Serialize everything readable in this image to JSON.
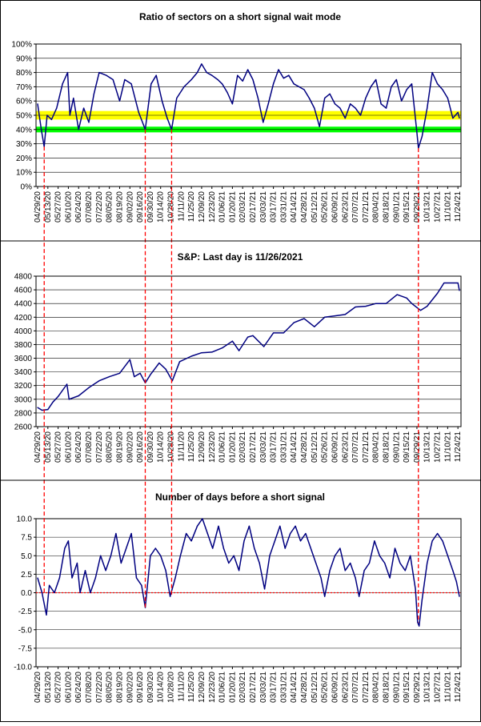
{
  "colors": {
    "series": "#000080",
    "band_yellow": "#ffff00",
    "band_green": "#00ff00",
    "signal_lines": "#ff0000",
    "zero_line": "#ff0000",
    "gridline": "#000000",
    "frame": "#000000"
  },
  "x_tick_labels": [
    "04/29/20",
    "05/13/20",
    "05/27/20",
    "06/10/20",
    "06/24/20",
    "07/08/20",
    "07/22/20",
    "08/05/20",
    "08/19/20",
    "09/02/20",
    "09/16/20",
    "09/30/20",
    "10/14/20",
    "10/28/20",
    "11/11/20",
    "11/25/20",
    "12/09/20",
    "12/23/20",
    "01/06/21",
    "01/20/21",
    "02/03/21",
    "02/17/21",
    "03/03/21",
    "03/17/21",
    "03/31/21",
    "04/14/21",
    "04/28/21",
    "05/12/21",
    "05/26/21",
    "06/09/21",
    "06/23/21",
    "07/07/21",
    "07/21/21",
    "08/04/21",
    "08/18/21",
    "09/01/21",
    "09/15/21",
    "09/29/21",
    "10/13/21",
    "10/27/21",
    "11/10/21",
    "11/24/21"
  ],
  "signal_dates": [
    "05/08/20",
    "09/23/20",
    "10/29/20",
    "10/01/21"
  ],
  "chart_data": [
    {
      "type": "line",
      "title": "Ratio of sectors on a short signal wait mode",
      "ylim": [
        0,
        100
      ],
      "y_ticks": [
        0,
        10,
        20,
        30,
        40,
        50,
        60,
        70,
        80,
        90,
        100
      ],
      "y_tick_labels": [
        "0%",
        "10%",
        "20%",
        "30%",
        "40%",
        "50%",
        "60%",
        "70%",
        "80%",
        "90%",
        "100%"
      ],
      "bands": [
        {
          "color": "yellow",
          "from": 47,
          "to": 53
        },
        {
          "color": "green",
          "from": 38,
          "to": 42
        }
      ],
      "points": [
        [
          "04/29/20",
          58
        ],
        [
          "05/04/20",
          40
        ],
        [
          "05/08/20",
          28
        ],
        [
          "05/12/20",
          50
        ],
        [
          "05/18/20",
          47
        ],
        [
          "05/25/20",
          55
        ],
        [
          "06/02/20",
          72
        ],
        [
          "06/09/20",
          80
        ],
        [
          "06/12/20",
          50
        ],
        [
          "06/17/20",
          62
        ],
        [
          "06/24/20",
          40
        ],
        [
          "07/01/20",
          55
        ],
        [
          "07/08/20",
          45
        ],
        [
          "07/15/20",
          65
        ],
        [
          "07/22/20",
          80
        ],
        [
          "08/01/20",
          78
        ],
        [
          "08/10/20",
          75
        ],
        [
          "08/19/20",
          60
        ],
        [
          "08/26/20",
          75
        ],
        [
          "09/04/20",
          72
        ],
        [
          "09/14/20",
          52
        ],
        [
          "09/23/20",
          40
        ],
        [
          "10/01/20",
          72
        ],
        [
          "10/08/20",
          78
        ],
        [
          "10/16/20",
          60
        ],
        [
          "10/23/20",
          48
        ],
        [
          "10/29/20",
          40
        ],
        [
          "11/05/20",
          62
        ],
        [
          "11/15/20",
          70
        ],
        [
          "11/25/20",
          75
        ],
        [
          "12/03/20",
          80
        ],
        [
          "12/09/20",
          86
        ],
        [
          "12/16/20",
          80
        ],
        [
          "12/23/20",
          78
        ],
        [
          "12/31/20",
          75
        ],
        [
          "01/06/21",
          72
        ],
        [
          "01/13/21",
          66
        ],
        [
          "01/20/21",
          58
        ],
        [
          "01/27/21",
          78
        ],
        [
          "02/03/21",
          74
        ],
        [
          "02/10/21",
          82
        ],
        [
          "02/17/21",
          75
        ],
        [
          "02/24/21",
          62
        ],
        [
          "03/03/21",
          45
        ],
        [
          "03/10/21",
          58
        ],
        [
          "03/17/21",
          72
        ],
        [
          "03/24/21",
          82
        ],
        [
          "03/31/21",
          76
        ],
        [
          "04/07/21",
          78
        ],
        [
          "04/14/21",
          72
        ],
        [
          "04/21/21",
          70
        ],
        [
          "04/28/21",
          68
        ],
        [
          "05/05/21",
          62
        ],
        [
          "05/12/21",
          55
        ],
        [
          "05/19/21",
          42
        ],
        [
          "05/26/21",
          62
        ],
        [
          "06/02/21",
          65
        ],
        [
          "06/09/21",
          58
        ],
        [
          "06/16/21",
          55
        ],
        [
          "06/23/21",
          48
        ],
        [
          "06/30/21",
          58
        ],
        [
          "07/07/21",
          55
        ],
        [
          "07/14/21",
          50
        ],
        [
          "07/21/21",
          62
        ],
        [
          "07/28/21",
          70
        ],
        [
          "08/04/21",
          75
        ],
        [
          "08/11/21",
          58
        ],
        [
          "08/18/21",
          55
        ],
        [
          "08/25/21",
          70
        ],
        [
          "09/01/21",
          75
        ],
        [
          "09/08/21",
          60
        ],
        [
          "09/15/21",
          68
        ],
        [
          "09/22/21",
          72
        ],
        [
          "09/29/21",
          38
        ],
        [
          "10/01/21",
          27
        ],
        [
          "10/06/21",
          35
        ],
        [
          "10/13/21",
          55
        ],
        [
          "10/20/21",
          80
        ],
        [
          "10/27/21",
          72
        ],
        [
          "11/03/21",
          68
        ],
        [
          "11/10/21",
          62
        ],
        [
          "11/17/21",
          48
        ],
        [
          "11/24/21",
          52
        ],
        [
          "11/26/21",
          48
        ]
      ]
    },
    {
      "type": "line",
      "title": "S&P: Last day is 11/26/2021",
      "ylim": [
        2600,
        4800
      ],
      "y_ticks": [
        2600,
        2800,
        3000,
        3200,
        3400,
        3600,
        3800,
        4000,
        4200,
        4400,
        4600,
        4800
      ],
      "y_tick_labels": [
        "2600",
        "2800",
        "3000",
        "3200",
        "3400",
        "3600",
        "3800",
        "4000",
        "4200",
        "4400",
        "4600",
        "4800"
      ],
      "points": [
        [
          "04/29/20",
          2880
        ],
        [
          "05/05/20",
          2840
        ],
        [
          "05/13/20",
          2850
        ],
        [
          "05/20/20",
          2960
        ],
        [
          "05/27/20",
          3040
        ],
        [
          "06/08/20",
          3220
        ],
        [
          "06/11/20",
          3000
        ],
        [
          "06/24/20",
          3050
        ],
        [
          "07/08/20",
          3170
        ],
        [
          "07/22/20",
          3270
        ],
        [
          "08/05/20",
          3330
        ],
        [
          "08/19/20",
          3380
        ],
        [
          "09/02/20",
          3580
        ],
        [
          "09/08/20",
          3330
        ],
        [
          "09/16/20",
          3380
        ],
        [
          "09/23/20",
          3240
        ],
        [
          "09/30/20",
          3360
        ],
        [
          "10/12/20",
          3530
        ],
        [
          "10/21/20",
          3440
        ],
        [
          "10/30/20",
          3270
        ],
        [
          "11/09/20",
          3550
        ],
        [
          "11/25/20",
          3630
        ],
        [
          "12/09/20",
          3680
        ],
        [
          "12/23/20",
          3690
        ],
        [
          "01/06/21",
          3750
        ],
        [
          "01/20/21",
          3850
        ],
        [
          "01/29/21",
          3710
        ],
        [
          "02/10/21",
          3910
        ],
        [
          "02/17/21",
          3930
        ],
        [
          "03/04/21",
          3770
        ],
        [
          "03/17/21",
          3970
        ],
        [
          "03/31/21",
          3970
        ],
        [
          "04/14/21",
          4120
        ],
        [
          "04/28/21",
          4180
        ],
        [
          "05/12/21",
          4060
        ],
        [
          "05/26/21",
          4200
        ],
        [
          "06/09/21",
          4220
        ],
        [
          "06/23/21",
          4240
        ],
        [
          "07/07/21",
          4350
        ],
        [
          "07/21/21",
          4360
        ],
        [
          "08/04/21",
          4400
        ],
        [
          "08/18/21",
          4400
        ],
        [
          "09/02/21",
          4530
        ],
        [
          "09/15/21",
          4480
        ],
        [
          "09/22/21",
          4400
        ],
        [
          "10/04/21",
          4300
        ],
        [
          "10/13/21",
          4360
        ],
        [
          "10/27/21",
          4550
        ],
        [
          "11/05/21",
          4700
        ],
        [
          "11/18/21",
          4700
        ],
        [
          "11/24/21",
          4700
        ],
        [
          "11/26/21",
          4590
        ]
      ]
    },
    {
      "type": "line",
      "title": "Number of days before a short signal",
      "ylim": [
        -10,
        10
      ],
      "y_ticks": [
        -10,
        -7.5,
        -5,
        -2.5,
        0,
        2.5,
        5,
        7.5,
        10
      ],
      "y_tick_labels": [
        "-10.0",
        "-7.5",
        "-5.0",
        "-2.5",
        "0.0",
        "2.5",
        "5.0",
        "7.5",
        "10.0"
      ],
      "zero_line": 0,
      "points": [
        [
          "04/29/20",
          2
        ],
        [
          "05/05/20",
          0
        ],
        [
          "05/11/20",
          -3
        ],
        [
          "05/15/20",
          1
        ],
        [
          "05/22/20",
          0
        ],
        [
          "05/29/20",
          2
        ],
        [
          "06/05/20",
          6
        ],
        [
          "06/10/20",
          7
        ],
        [
          "06/15/20",
          2
        ],
        [
          "06/22/20",
          4
        ],
        [
          "06/26/20",
          0
        ],
        [
          "07/03/20",
          3
        ],
        [
          "07/10/20",
          0
        ],
        [
          "07/17/20",
          2
        ],
        [
          "07/24/20",
          5
        ],
        [
          "07/31/20",
          3
        ],
        [
          "08/07/20",
          5
        ],
        [
          "08/14/20",
          8
        ],
        [
          "08/21/20",
          4
        ],
        [
          "08/28/20",
          6
        ],
        [
          "09/04/20",
          8
        ],
        [
          "09/11/20",
          2
        ],
        [
          "09/18/20",
          1
        ],
        [
          "09/23/20",
          -2
        ],
        [
          "09/30/20",
          5
        ],
        [
          "10/07/20",
          6
        ],
        [
          "10/14/20",
          5
        ],
        [
          "10/21/20",
          3
        ],
        [
          "10/27/20",
          -0.5
        ],
        [
          "11/03/20",
          2
        ],
        [
          "11/10/20",
          5
        ],
        [
          "11/18/20",
          8
        ],
        [
          "11/25/20",
          7
        ],
        [
          "12/03/20",
          9
        ],
        [
          "12/10/20",
          10
        ],
        [
          "12/17/20",
          8
        ],
        [
          "12/24/20",
          6
        ],
        [
          "01/01/21",
          9
        ],
        [
          "01/08/21",
          6
        ],
        [
          "01/15/21",
          4
        ],
        [
          "01/22/21",
          5
        ],
        [
          "01/29/21",
          3
        ],
        [
          "02/05/21",
          7
        ],
        [
          "02/12/21",
          9
        ],
        [
          "02/19/21",
          6
        ],
        [
          "02/26/21",
          4
        ],
        [
          "03/05/21",
          0.5
        ],
        [
          "03/12/21",
          5
        ],
        [
          "03/19/21",
          7
        ],
        [
          "03/26/21",
          9
        ],
        [
          "04/02/21",
          6
        ],
        [
          "04/09/21",
          8
        ],
        [
          "04/16/21",
          9
        ],
        [
          "04/23/21",
          7
        ],
        [
          "04/30/21",
          8
        ],
        [
          "05/07/21",
          6
        ],
        [
          "05/14/21",
          4
        ],
        [
          "05/21/21",
          2
        ],
        [
          "05/26/21",
          -0.5
        ],
        [
          "06/02/21",
          3
        ],
        [
          "06/09/21",
          5
        ],
        [
          "06/16/21",
          6
        ],
        [
          "06/23/21",
          3
        ],
        [
          "06/30/21",
          4
        ],
        [
          "07/07/21",
          2
        ],
        [
          "07/12/21",
          -0.5
        ],
        [
          "07/19/21",
          3
        ],
        [
          "07/26/21",
          4
        ],
        [
          "08/02/21",
          7
        ],
        [
          "08/09/21",
          5
        ],
        [
          "08/16/21",
          4
        ],
        [
          "08/23/21",
          2
        ],
        [
          "08/30/21",
          6
        ],
        [
          "09/06/21",
          4
        ],
        [
          "09/13/21",
          3
        ],
        [
          "09/20/21",
          5
        ],
        [
          "09/27/21",
          0.5
        ],
        [
          "09/30/21",
          -4
        ],
        [
          "10/02/21",
          -4.5
        ],
        [
          "10/06/21",
          -1
        ],
        [
          "10/13/21",
          4
        ],
        [
          "10/20/21",
          7
        ],
        [
          "10/27/21",
          8
        ],
        [
          "11/03/21",
          7
        ],
        [
          "11/10/21",
          5
        ],
        [
          "11/17/21",
          3
        ],
        [
          "11/22/21",
          1.5
        ],
        [
          "11/26/21",
          -0.5
        ]
      ]
    }
  ]
}
